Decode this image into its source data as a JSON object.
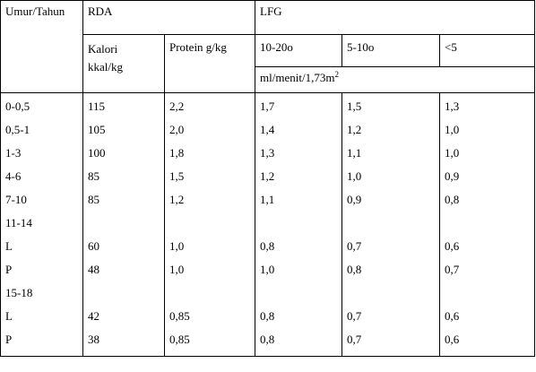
{
  "header": {
    "age_col": "Umur/Tahun",
    "rda_group": "RDA",
    "lfg_group": "LFG",
    "kalori_line1": "Kalori",
    "kalori_line2": "kkal/kg",
    "protein": "Protein g/kg",
    "lfg_ranges": [
      "10-20o",
      "5-10o",
      "<5"
    ],
    "lfg_unit_prefix": "ml/menit/1,73m",
    "lfg_unit_sup": "2"
  },
  "rows": [
    {
      "age": "0-0,5",
      "kalori": "115",
      "protein": "2,2",
      "lfg1": "1,7",
      "lfg2": "1,5",
      "lfg3": "1,3"
    },
    {
      "age": "0,5-1",
      "kalori": "105",
      "protein": "2,0",
      "lfg1": "1,4",
      "lfg2": "1,2",
      "lfg3": "1,0"
    },
    {
      "age": "1-3",
      "kalori": "100",
      "protein": "1,8",
      "lfg1": "1,3",
      "lfg2": "1,1",
      "lfg3": "1,0"
    },
    {
      "age": "4-6",
      "kalori": "85",
      "protein": "1,5",
      "lfg1": "1,2",
      "lfg2": "1,0",
      "lfg3": "0,9"
    },
    {
      "age": "7-10",
      "kalori": "85",
      "protein": "1,2",
      "lfg1": "1,1",
      "lfg2": "0,9",
      "lfg3": "0,8"
    },
    {
      "age": "11-14",
      "kalori": "",
      "protein": "",
      "lfg1": "",
      "lfg2": "",
      "lfg3": ""
    },
    {
      "age": "L",
      "kalori": "60",
      "protein": "1,0",
      "lfg1": "0,8",
      "lfg2": "0,7",
      "lfg3": "0,6"
    },
    {
      "age": "P",
      "kalori": "48",
      "protein": "1,0",
      "lfg1": "1,0",
      "lfg2": "0,8",
      "lfg3": "0,7"
    },
    {
      "age": "15-18",
      "kalori": "",
      "protein": "",
      "lfg1": "",
      "lfg2": "",
      "lfg3": ""
    },
    {
      "age": "L",
      "kalori": "42",
      "protein": "0,85",
      "lfg1": "0,8",
      "lfg2": "0,7",
      "lfg3": "0,6"
    },
    {
      "age": "P",
      "kalori": "38",
      "protein": "0,85",
      "lfg1": "0,8",
      "lfg2": "0,7",
      "lfg3": "0,6"
    }
  ]
}
